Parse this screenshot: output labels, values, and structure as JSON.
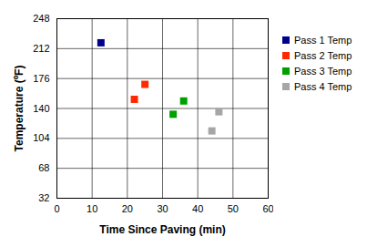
{
  "chart_data": {
    "type": "scatter",
    "x_label": "Time Since Paving (min)",
    "y_label": "Temperature (ºF)",
    "xlim": [
      0,
      60
    ],
    "xticks": [
      0,
      10,
      20,
      30,
      40,
      50,
      60
    ],
    "ylim": [
      32,
      248
    ],
    "yticks": [
      32,
      68,
      104,
      140,
      176,
      212,
      248
    ],
    "grid": true,
    "legend": "right",
    "marker": "square",
    "series": [
      {
        "name": "Pass 1 Temp",
        "color": "#00008b",
        "x": [
          12.5
        ],
        "values": [
          219
        ]
      },
      {
        "name": "Pass 2 Temp",
        "color": "#ff2a00",
        "x": [
          22,
          25
        ],
        "values": [
          151,
          169
        ]
      },
      {
        "name": "Pass 3 Temp",
        "color": "#00a000",
        "x": [
          33,
          36
        ],
        "values": [
          133,
          149
        ]
      },
      {
        "name": "Pass 4 Temp",
        "color": "#a6a6a6",
        "x": [
          44,
          46
        ],
        "values": [
          113,
          136
        ]
      }
    ]
  }
}
